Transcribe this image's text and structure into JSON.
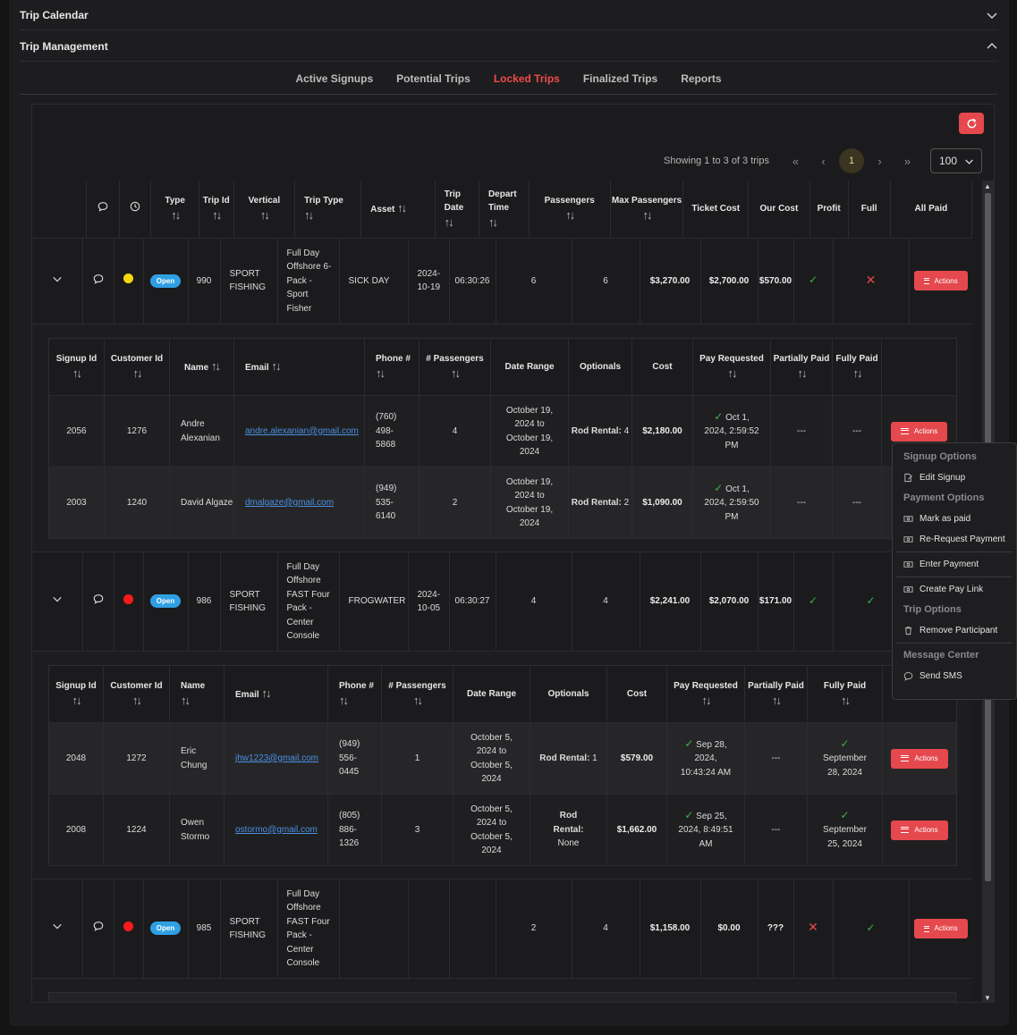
{
  "sections": {
    "calendar_title": "Trip Calendar",
    "management_title": "Trip Management"
  },
  "tabs": [
    "Active Signups",
    "Potential Trips",
    "Locked Trips",
    "Finalized Trips",
    "Reports"
  ],
  "active_tab": "Locked Trips",
  "pager": {
    "info": "Showing 1 to 3 of 3 trips",
    "current_page": "1",
    "page_size": "100"
  },
  "trip_columns": [
    "Type",
    "Trip Id",
    "Vertical",
    "Trip Type",
    "Asset",
    "Trip Date",
    "Depart Time",
    "Passengers",
    "Max Passengers",
    "Ticket Cost",
    "Our Cost",
    "Profit",
    "Full",
    "All Paid"
  ],
  "actions_label": "Actions",
  "trips": [
    {
      "type": "Open",
      "status_color": "#f5d90a",
      "id": "990",
      "vertical": "SPORT FISHING",
      "trip_type": "Full Day Offshore 6-Pack - Sport Fisher",
      "asset": "SICK DAY",
      "date": "2024-10-19",
      "depart": "06:30:26",
      "passengers": "6",
      "max_passengers": "6",
      "ticket_cost": "$3,270.00",
      "our_cost": "$2,700.00",
      "profit": "$570.00",
      "full": "check",
      "all_paid": "cross"
    },
    {
      "type": "Open",
      "status_color": "#ff1a1a",
      "id": "986",
      "vertical": "SPORT FISHING",
      "trip_type": "Full Day Offshore FAST Four Pack - Center Console",
      "asset": "FROGWATER",
      "date": "2024-10-05",
      "depart": "06:30:27",
      "passengers": "4",
      "max_passengers": "4",
      "ticket_cost": "$2,241.00",
      "our_cost": "$2,070.00",
      "profit": "$171.00",
      "full": "check",
      "all_paid": "check"
    },
    {
      "type": "Open",
      "status_color": "#ff1a1a",
      "id": "985",
      "vertical": "SPORT FISHING",
      "trip_type": "Full Day Offshore FAST Four Pack - Center Console",
      "asset": "",
      "date": "",
      "depart": "",
      "passengers": "2",
      "max_passengers": "4",
      "ticket_cost": "$1,158.00",
      "our_cost": "$0.00",
      "profit": "???",
      "full": "cross",
      "all_paid": "check"
    }
  ],
  "signup_columns": [
    "Signup Id",
    "Customer Id",
    "Name",
    "Email",
    "Phone #",
    "# Passengers",
    "Date Range",
    "Optionals",
    "Cost",
    "Pay Requested",
    "Partially Paid",
    "Fully Paid"
  ],
  "signups_990": [
    {
      "id": "2056",
      "customer": "1276",
      "name": "Andre Alexanian",
      "email": "andre.alexanian@gmail.com",
      "phone": "(760) 498-5868",
      "passengers": "4",
      "range": "October 19, 2024 to October 19, 2024",
      "opt_label": "Rod Rental:",
      "opt_value": "4",
      "cost": "$2,180.00",
      "pay_requested": "Oct 1, 2024, 2:59:52 PM",
      "partially": "---",
      "fully": "---"
    },
    {
      "id": "2003",
      "customer": "1240",
      "name": "David Algaze",
      "email": "dmalgaze@gmail.com",
      "phone": "(949) 535-6140",
      "passengers": "2",
      "range": "October 19, 2024 to October 19, 2024",
      "opt_label": "Rod Rental:",
      "opt_value": "2",
      "cost": "$1,090.00",
      "pay_requested": "Oct 1, 2024, 2:59:50 PM",
      "partially": "---",
      "fully": "---"
    }
  ],
  "signups_986": [
    {
      "id": "2048",
      "customer": "1272",
      "name": "Eric Chung",
      "email": "jhw1223@gmail.com",
      "phone": "(949) 556-0445",
      "passengers": "1",
      "range": "October 5, 2024 to October 5, 2024",
      "opt_label": "Rod Rental:",
      "opt_value": "1",
      "cost": "$579.00",
      "pay_requested": "Sep 28, 2024, 10:43:24 AM",
      "partially": "---",
      "fully": "September 28, 2024"
    },
    {
      "id": "2008",
      "customer": "1224",
      "name": "Owen Stormo",
      "email": "ostormo@gmail.com",
      "phone": "(805) 886-1326",
      "passengers": "3",
      "range": "October 5, 2024 to October 5, 2024",
      "opt_label": "Rod Rental:",
      "opt_value": "None",
      "cost": "$1,662.00",
      "pay_requested": "Sep 25, 2024, 8:49:51 AM",
      "partially": "---",
      "fully": "September 25, 2024"
    }
  ],
  "menu": {
    "signup_options": "Signup Options",
    "edit_signup": "Edit Signup",
    "payment_options": "Payment Options",
    "mark_paid": "Mark as paid",
    "re_request": "Re-Request Payment",
    "enter_payment": "Enter Payment",
    "create_link": "Create Pay Link",
    "trip_options": "Trip Options",
    "remove_participant": "Remove Participant",
    "message_center": "Message Center",
    "send_sms": "Send SMS"
  },
  "icons": {
    "expand": "chevron-down-icon",
    "collapse": "chevron-up-icon",
    "chat": "chat-bubble-icon",
    "clock": "clock-icon",
    "refresh": "refresh-icon"
  },
  "colors": {
    "accent": "#e5484d",
    "badge": "#2f9fe3",
    "check": "#3cb24a"
  }
}
